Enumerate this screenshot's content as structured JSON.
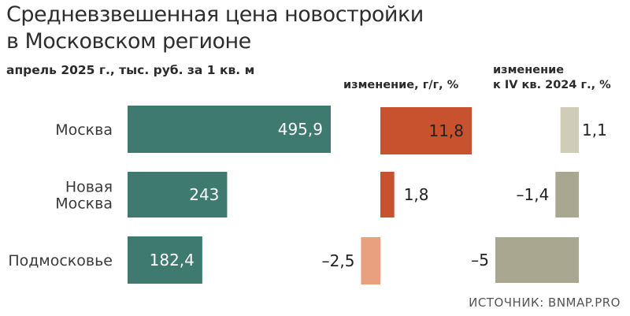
{
  "header": {
    "title_line1": "Средневзвешенная цена новостройки",
    "title_line2": "в Московском регионе",
    "subtitle": "апрель 2025 г., тыс. руб. за 1 кв. м",
    "col2_label": "изменение, г/г, %",
    "col3_label_line1": "изменение",
    "col3_label_line2": "к IV кв. 2024 г., %",
    "source": "ИСТОЧНИК: BNMAP.PRO"
  },
  "colors": {
    "price": "#3e7a70",
    "yoy_positive": "#c9522e",
    "yoy_negative": "#e8a07e",
    "qoq_small": "#cfcdb7",
    "qoq": "#a9a78f"
  },
  "chart_data": [
    {
      "type": "bar",
      "categories": [
        [
          "Москва"
        ],
        [
          "Новая",
          "Москва"
        ],
        [
          "Подмосковье"
        ]
      ],
      "values": [
        495.9,
        243,
        182.4
      ],
      "labels": [
        "495,9",
        "243",
        "182,4"
      ],
      "ylabel": "тыс. руб. за 1 кв. м"
    },
    {
      "type": "bar",
      "title": "изменение, г/г, %",
      "categories": [
        "Москва",
        "Новая Москва",
        "Подмосковье"
      ],
      "values": [
        11.8,
        1.8,
        -2.5
      ],
      "labels": [
        "11,8",
        "1,8",
        "–2,5"
      ]
    },
    {
      "type": "bar",
      "title": "изменение к IV кв. 2024 г., %",
      "categories": [
        "Москва",
        "Новая Москва",
        "Подмосковье"
      ],
      "values": [
        1.1,
        -1.4,
        -5
      ],
      "labels": [
        "1,1",
        "–1,4",
        "–5"
      ]
    }
  ]
}
